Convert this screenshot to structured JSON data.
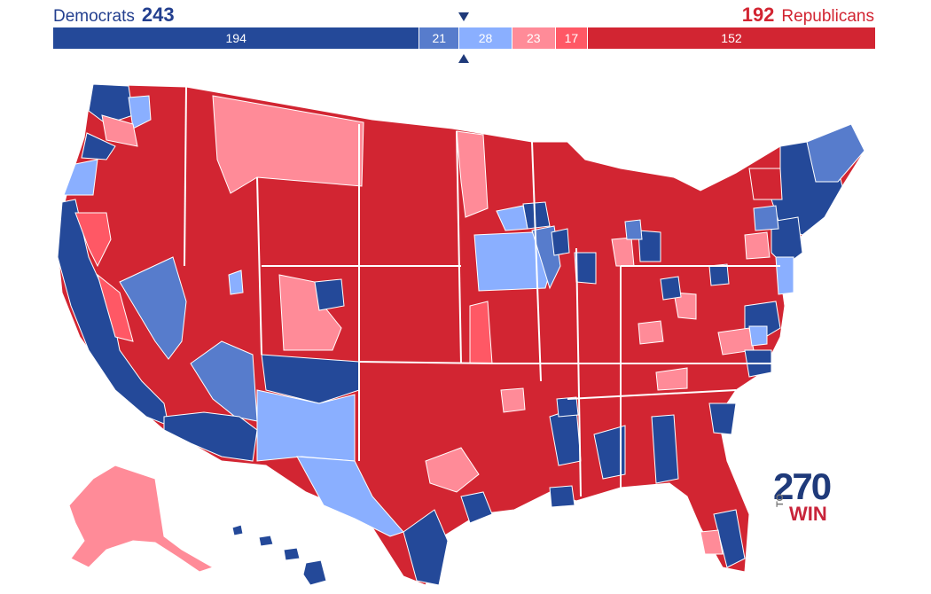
{
  "header": {
    "dem_label": "Democrats",
    "dem_total": "243",
    "rep_total": "192",
    "rep_label": "Republicans"
  },
  "bar": {
    "segments": [
      {
        "label": "194",
        "value": 194,
        "color": "#244999"
      },
      {
        "label": "21",
        "value": 21,
        "color": "#577ccc"
      },
      {
        "label": "28",
        "value": 28,
        "color": "#8aafff"
      },
      {
        "label": "23",
        "value": 23,
        "color": "#ff8b98"
      },
      {
        "label": "17",
        "value": 17,
        "color": "#ff5865"
      },
      {
        "label": "152",
        "value": 152,
        "color": "#d22532"
      }
    ]
  },
  "colors": {
    "safe_dem": "#244999",
    "likely_dem": "#577ccc",
    "lean_dem": "#8aafff",
    "lean_rep": "#ff8b98",
    "likely_rep": "#ff5865",
    "safe_rep": "#d22532"
  },
  "logo": {
    "number": "270",
    "to": "TO",
    "win": "WIN"
  }
}
